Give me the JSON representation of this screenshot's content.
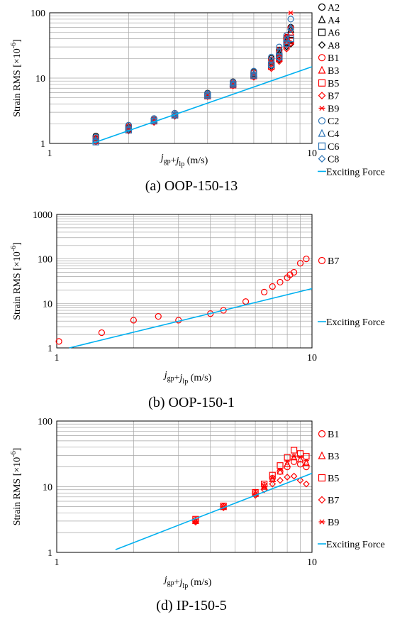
{
  "chart_data": [
    {
      "type": "scatter",
      "caption": "(a) OOP-150-13",
      "xlabel": "j_gp+j_lp (m/s)",
      "ylabel": "Strain RMS [×10^-6]",
      "xscale": "log",
      "yscale": "log",
      "xlim": [
        1,
        10
      ],
      "ylim": [
        1,
        100
      ],
      "x_ticks": [
        "1",
        "10"
      ],
      "y_ticks": [
        "1",
        "10",
        "100"
      ],
      "grid": true,
      "legend_position": "right",
      "series": [
        {
          "name": "A2",
          "marker": "circle",
          "color": "#000000",
          "x": [
            1.5,
            2.0,
            2.5,
            3.0,
            4.0,
            5.0,
            6.0,
            7.0,
            7.5,
            8.0,
            8.3
          ],
          "y": [
            1.3,
            1.9,
            2.4,
            2.9,
            5.9,
            8.8,
            12.5,
            20,
            27,
            42,
            60
          ]
        },
        {
          "name": "A4",
          "marker": "triangle",
          "color": "#000000",
          "x": [
            1.5,
            2.0,
            2.5,
            3.0,
            4.0,
            5.0,
            6.0,
            7.0,
            7.5,
            8.0,
            8.3
          ],
          "y": [
            1.2,
            1.8,
            2.3,
            2.8,
            5.6,
            8.3,
            11.5,
            18,
            24,
            38,
            55
          ]
        },
        {
          "name": "A6",
          "marker": "square",
          "color": "#000000",
          "x": [
            1.5,
            2.0,
            2.5,
            3.0,
            4.0,
            5.0,
            6.0,
            7.0,
            7.5,
            8.0,
            8.3
          ],
          "y": [
            1.15,
            1.7,
            2.2,
            2.7,
            5.4,
            8.0,
            11.0,
            16,
            21,
            35,
            38
          ]
        },
        {
          "name": "A8",
          "marker": "diamond",
          "color": "#000000",
          "x": [
            1.5,
            2.0,
            2.5,
            3.0,
            4.0,
            5.0,
            6.0,
            7.0,
            7.5,
            8.0,
            8.3
          ],
          "y": [
            1.1,
            1.6,
            2.2,
            2.6,
            5.3,
            7.8,
            10.5,
            15,
            19,
            30,
            33
          ]
        },
        {
          "name": "B1",
          "marker": "circle",
          "color": "#ff0000",
          "x": [
            1.5,
            2.0,
            2.5,
            3.0,
            4.0,
            5.0,
            6.0,
            7.0,
            7.5,
            8.0,
            8.3
          ],
          "y": [
            1.2,
            1.8,
            2.3,
            2.9,
            5.7,
            8.5,
            12,
            19,
            25,
            40,
            58
          ]
        },
        {
          "name": "B3",
          "marker": "triangle",
          "color": "#ff0000",
          "x": [
            1.5,
            2.0,
            2.5,
            3.0,
            4.0,
            5.0,
            6.0,
            7.0,
            7.5,
            8.0,
            8.3
          ],
          "y": [
            1.1,
            1.7,
            2.2,
            2.7,
            5.4,
            8.0,
            11,
            17,
            22,
            36,
            50
          ]
        },
        {
          "name": "B5",
          "marker": "square",
          "color": "#ff0000",
          "x": [
            1.5,
            2.0,
            2.5,
            3.0,
            4.0,
            5.0,
            6.0,
            7.0,
            7.5,
            8.0,
            8.3
          ],
          "y": [
            1.1,
            1.6,
            2.2,
            2.7,
            5.3,
            7.8,
            10.8,
            15,
            20,
            33,
            37
          ]
        },
        {
          "name": "B7",
          "marker": "diamond",
          "color": "#ff0000",
          "x": [
            1.5,
            2.0,
            2.5,
            3.0,
            4.0,
            5.0,
            6.0,
            7.0,
            7.5,
            8.0,
            8.3
          ],
          "y": [
            1.05,
            1.55,
            2.1,
            2.6,
            5.2,
            7.6,
            10.3,
            14,
            18,
            28,
            34
          ]
        },
        {
          "name": "B9",
          "marker": "asterisk",
          "color": "#ff0000",
          "x": [
            1.5,
            2.0,
            2.5,
            3.0,
            4.0,
            5.0,
            6.0,
            7.0,
            7.5,
            8.0,
            8.3
          ],
          "y": [
            1.2,
            1.75,
            2.3,
            2.8,
            5.5,
            8.2,
            11.5,
            18,
            28,
            45,
            100
          ]
        },
        {
          "name": "C2",
          "marker": "circle",
          "color": "#2e75b6",
          "x": [
            1.5,
            2.0,
            2.5,
            3.0,
            4.0,
            5.0,
            6.0,
            7.0,
            7.5,
            8.0,
            8.3
          ],
          "y": [
            1.25,
            1.9,
            2.4,
            2.9,
            5.8,
            8.7,
            12.8,
            21,
            30,
            45,
            80
          ]
        },
        {
          "name": "C4",
          "marker": "triangle",
          "color": "#2e75b6",
          "x": [
            1.5,
            2.0,
            2.5,
            3.0,
            4.0,
            5.0,
            6.0,
            7.0,
            7.5,
            8.0,
            8.3
          ],
          "y": [
            1.15,
            1.75,
            2.3,
            2.8,
            5.6,
            8.4,
            11.8,
            19,
            26,
            40,
            60
          ]
        },
        {
          "name": "C6",
          "marker": "square",
          "color": "#2e75b6",
          "x": [
            1.5,
            2.0,
            2.5,
            3.0,
            4.0,
            5.0,
            6.0,
            7.0,
            7.5,
            8.0,
            8.3
          ],
          "y": [
            1.05,
            1.6,
            2.2,
            2.7,
            5.4,
            8.0,
            11,
            16,
            21,
            34,
            40
          ]
        },
        {
          "name": "C8",
          "marker": "diamond",
          "color": "#2e75b6",
          "x": [
            1.5,
            2.0,
            2.5,
            3.0,
            4.0,
            5.0,
            6.0,
            7.0,
            7.5,
            8.0,
            8.3
          ],
          "y": [
            1.1,
            1.65,
            2.2,
            2.7,
            5.3,
            7.9,
            10.8,
            15.5,
            20,
            32,
            56
          ]
        },
        {
          "name": "Exciting Force",
          "marker": "line",
          "color": "#00b0f0",
          "x": [
            1.45,
            10.5
          ],
          "y": [
            1.0,
            16.0
          ]
        }
      ]
    },
    {
      "type": "scatter",
      "caption": "(b) OOP-150-1",
      "xlabel": "j_gp+j_lp (m/s)",
      "ylabel": "Strain RMS [×10^-6]",
      "xscale": "log",
      "yscale": "log",
      "xlim": [
        1,
        10
      ],
      "ylim": [
        1,
        1000
      ],
      "x_ticks": [
        "1",
        "10"
      ],
      "y_ticks": [
        "1",
        "10",
        "100",
        "1000"
      ],
      "grid": true,
      "legend_position": "right",
      "series": [
        {
          "name": "B7",
          "marker": "circle",
          "color": "#ff0000",
          "x": [
            1.02,
            1.5,
            2.0,
            2.5,
            3.0,
            4.0,
            4.5,
            5.5,
            6.5,
            7.0,
            7.5,
            8.0,
            8.2,
            8.5,
            9.0,
            9.5
          ],
          "y": [
            1.4,
            2.2,
            4.2,
            5.1,
            4.2,
            5.9,
            7.0,
            11,
            18,
            24,
            30,
            38,
            44,
            50,
            80,
            100
          ]
        },
        {
          "name": "Exciting Force",
          "marker": "line",
          "color": "#00b0f0",
          "x": [
            1.12,
            10.5
          ],
          "y": [
            1.0,
            23.0
          ]
        }
      ]
    },
    {
      "type": "scatter",
      "caption": "(d) IP-150-5",
      "xlabel": "j_gp+j_lp (m/s)",
      "ylabel": "Strain RMS [×10^-6]",
      "xscale": "log",
      "yscale": "log",
      "xlim": [
        1,
        10
      ],
      "ylim": [
        1,
        100
      ],
      "x_ticks": [
        "1",
        "10"
      ],
      "y_ticks": [
        "1",
        "10",
        "100"
      ],
      "grid": true,
      "legend_position": "right",
      "series": [
        {
          "name": "B1",
          "marker": "circle",
          "color": "#ff0000",
          "x": [
            3.5,
            4.5,
            6.0,
            6.5,
            7.0,
            7.5,
            8.0,
            8.5,
            9.0,
            9.5
          ],
          "y": [
            3.1,
            5.0,
            8.0,
            10.5,
            13.5,
            17,
            20,
            24,
            22,
            20
          ]
        },
        {
          "name": "B3",
          "marker": "triangle",
          "color": "#ff0000",
          "x": [
            3.5,
            4.5,
            6.0,
            6.5,
            7.0,
            7.5,
            8.0,
            8.5,
            9.0,
            9.5
          ],
          "y": [
            3.0,
            4.9,
            7.8,
            10,
            13,
            17,
            22,
            28,
            26,
            23
          ]
        },
        {
          "name": "B5",
          "marker": "square",
          "color": "#ff0000",
          "x": [
            3.5,
            4.5,
            6.0,
            6.5,
            7.0,
            7.5,
            8.0,
            8.5,
            9.0,
            9.5
          ],
          "y": [
            3.2,
            5.1,
            8.2,
            11,
            15,
            21,
            28,
            36,
            32,
            29
          ]
        },
        {
          "name": "B7",
          "marker": "diamond",
          "color": "#ff0000",
          "x": [
            3.5,
            4.5,
            6.0,
            6.5,
            7.0,
            7.5,
            8.0,
            8.5,
            9.0,
            9.5
          ],
          "y": [
            2.9,
            4.8,
            7.4,
            9.0,
            11,
            12.5,
            14,
            14.5,
            12.5,
            11
          ]
        },
        {
          "name": "B9",
          "marker": "asterisk",
          "color": "#ff0000",
          "x": [
            3.5,
            4.5,
            6.0,
            6.5,
            7.0,
            7.5,
            8.0,
            8.5,
            9.0,
            9.5
          ],
          "y": [
            3.0,
            4.9,
            7.6,
            10.2,
            13.5,
            18,
            24,
            29,
            28,
            25
          ]
        },
        {
          "name": "Exciting Force",
          "marker": "line",
          "color": "#00b0f0",
          "x": [
            1.7,
            10.0
          ],
          "y": [
            1.1,
            16.0
          ]
        }
      ]
    }
  ]
}
